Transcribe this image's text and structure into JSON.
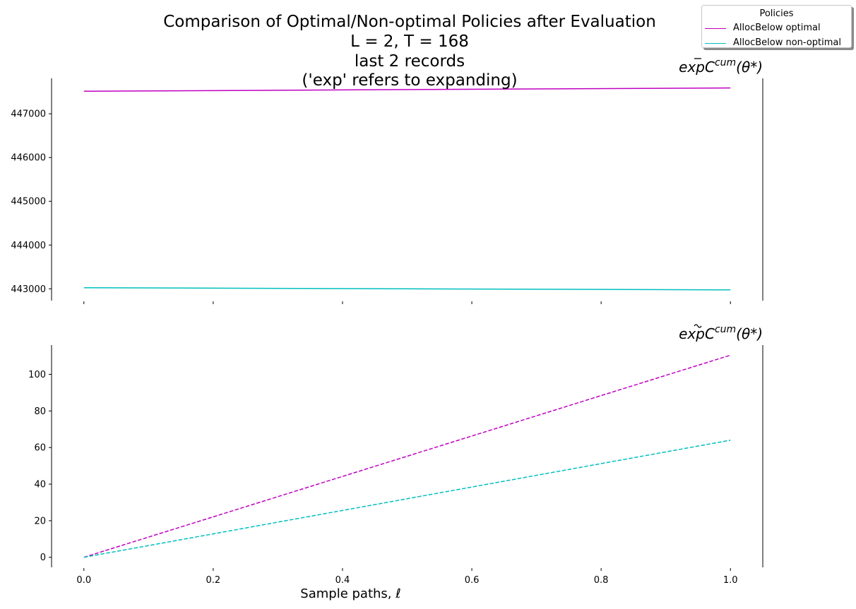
{
  "title_lines": [
    "Comparison of Optimal/Non-optimal Policies after Evaluation",
    "L = 2, T = 168",
    "last 2 records",
    "('exp' refers to expanding)"
  ],
  "legend": {
    "title": "Policies",
    "entries": [
      {
        "label": "AllocBelow optimal",
        "color": "#c000c0"
      },
      {
        "label": "AllocBelow non-optimal",
        "color": "#00bfbf"
      }
    ]
  },
  "chart_data": [
    {
      "type": "line",
      "corner_label": "expC̄cum(θ*)",
      "corner_label_parts": {
        "base": "exp",
        "sym": "C",
        "accent": "bar",
        "sup": "cum",
        "arg": "(θ*)"
      },
      "xlabel": "",
      "ylabel": "",
      "x": [
        0.0,
        1.0
      ],
      "xlim": [
        -0.05,
        1.05
      ],
      "ylim": [
        442730,
        447810
      ],
      "xticks": [
        0.0,
        0.2,
        0.4,
        0.6,
        0.8,
        1.0
      ],
      "xtick_labels_shown": false,
      "yticks": [
        443000,
        444000,
        445000,
        446000,
        447000
      ],
      "ytick_labels": [
        "443000",
        "444000",
        "445000",
        "446000",
        "447000"
      ],
      "series": [
        {
          "name": "AllocBelow optimal",
          "color": "#c000c0",
          "dash": "solid",
          "values": [
            447515,
            447590
          ]
        },
        {
          "name": "AllocBelow non-optimal",
          "color": "#00bfbf",
          "dash": "solid",
          "values": [
            443025,
            442975
          ]
        }
      ],
      "grid": false,
      "legend_position": "top-right"
    },
    {
      "type": "line",
      "corner_label": "expC̃cum(θ*)",
      "corner_label_parts": {
        "base": "exp",
        "sym": "C",
        "accent": "tilde",
        "sup": "cum",
        "arg": "(θ*)"
      },
      "xlabel": "Sample paths, ℓ",
      "xlabel_parts": {
        "text": "Sample paths, ",
        "sym": "ℓ"
      },
      "ylabel": "",
      "x": [
        0.0,
        1.0
      ],
      "xlim": [
        -0.05,
        1.05
      ],
      "ylim": [
        -5.5,
        116
      ],
      "xticks": [
        0.0,
        0.2,
        0.4,
        0.6,
        0.8,
        1.0
      ],
      "xtick_labels": [
        "0.0",
        "0.2",
        "0.4",
        "0.6",
        "0.8",
        "1.0"
      ],
      "xtick_labels_shown": true,
      "yticks": [
        0,
        20,
        40,
        60,
        80,
        100
      ],
      "ytick_labels": [
        "0",
        "20",
        "40",
        "60",
        "80",
        "100"
      ],
      "series": [
        {
          "color": "#c000c0",
          "dash": "dashed",
          "values": [
            0,
            110.5
          ]
        },
        {
          "color": "#00bfbf",
          "dash": "dashed",
          "values": [
            0,
            64
          ]
        }
      ],
      "grid": false
    }
  ]
}
